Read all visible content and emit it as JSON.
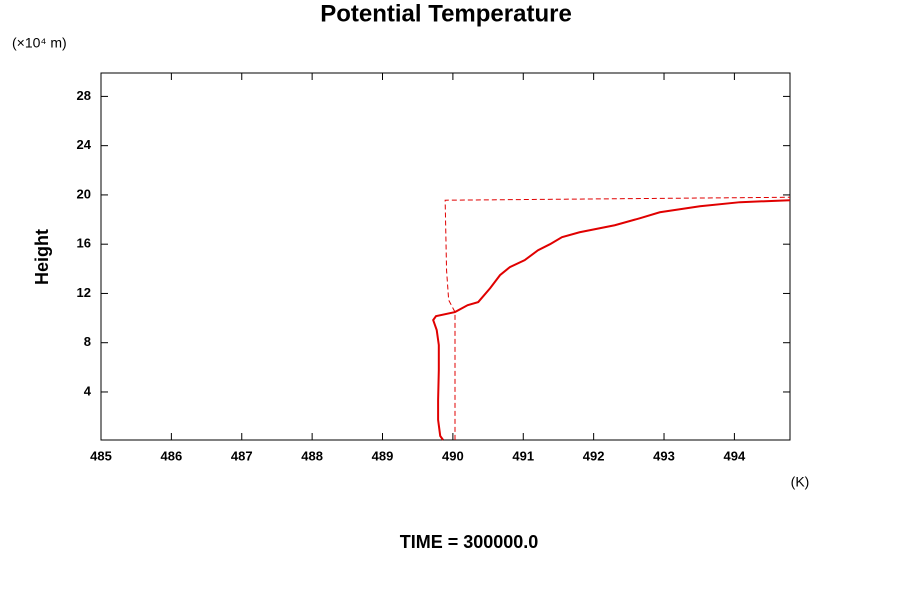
{
  "chart_data": {
    "type": "line",
    "title": "Potential Temperature",
    "y_label": "Height",
    "y_unit": "(×10⁴ m)",
    "x_unit": "(K)",
    "annotation": "TIME = 300000.0",
    "xlim": [
      485,
      494.79
    ],
    "ylim": [
      0.1,
      29.9
    ],
    "xticks": [
      485,
      486,
      487,
      488,
      489,
      490,
      491,
      492,
      493,
      494
    ],
    "yticks": [
      4,
      8,
      12,
      16,
      20,
      24,
      28
    ],
    "series": [
      {
        "color": "#e00000",
        "dash": false,
        "x": [
          489.86,
          489.82,
          489.79,
          489.79,
          489.8,
          489.8,
          489.77,
          489.72,
          489.76,
          490.03,
          490.21,
          490.36,
          490.53,
          490.67,
          490.81,
          491.02,
          491.21,
          491.38,
          491.55,
          491.8,
          492.3,
          492.66,
          492.94,
          493.51,
          494.08,
          494.79
        ],
        "values": [
          0.11,
          0.43,
          1.73,
          3.35,
          5.78,
          7.81,
          9.03,
          9.84,
          10.16,
          10.49,
          11.05,
          11.3,
          12.43,
          13.49,
          14.14,
          14.7,
          15.51,
          16.0,
          16.57,
          16.97,
          17.54,
          18.11,
          18.59,
          19.08,
          19.41,
          19.57
        ]
      },
      {
        "color": "#e00000",
        "dash": true,
        "x": [
          490.03,
          490.03,
          489.94,
          489.91,
          489.89,
          494.79
        ],
        "values": [
          0.11,
          10.49,
          11.46,
          13.89,
          19.57,
          19.81
        ]
      }
    ]
  }
}
